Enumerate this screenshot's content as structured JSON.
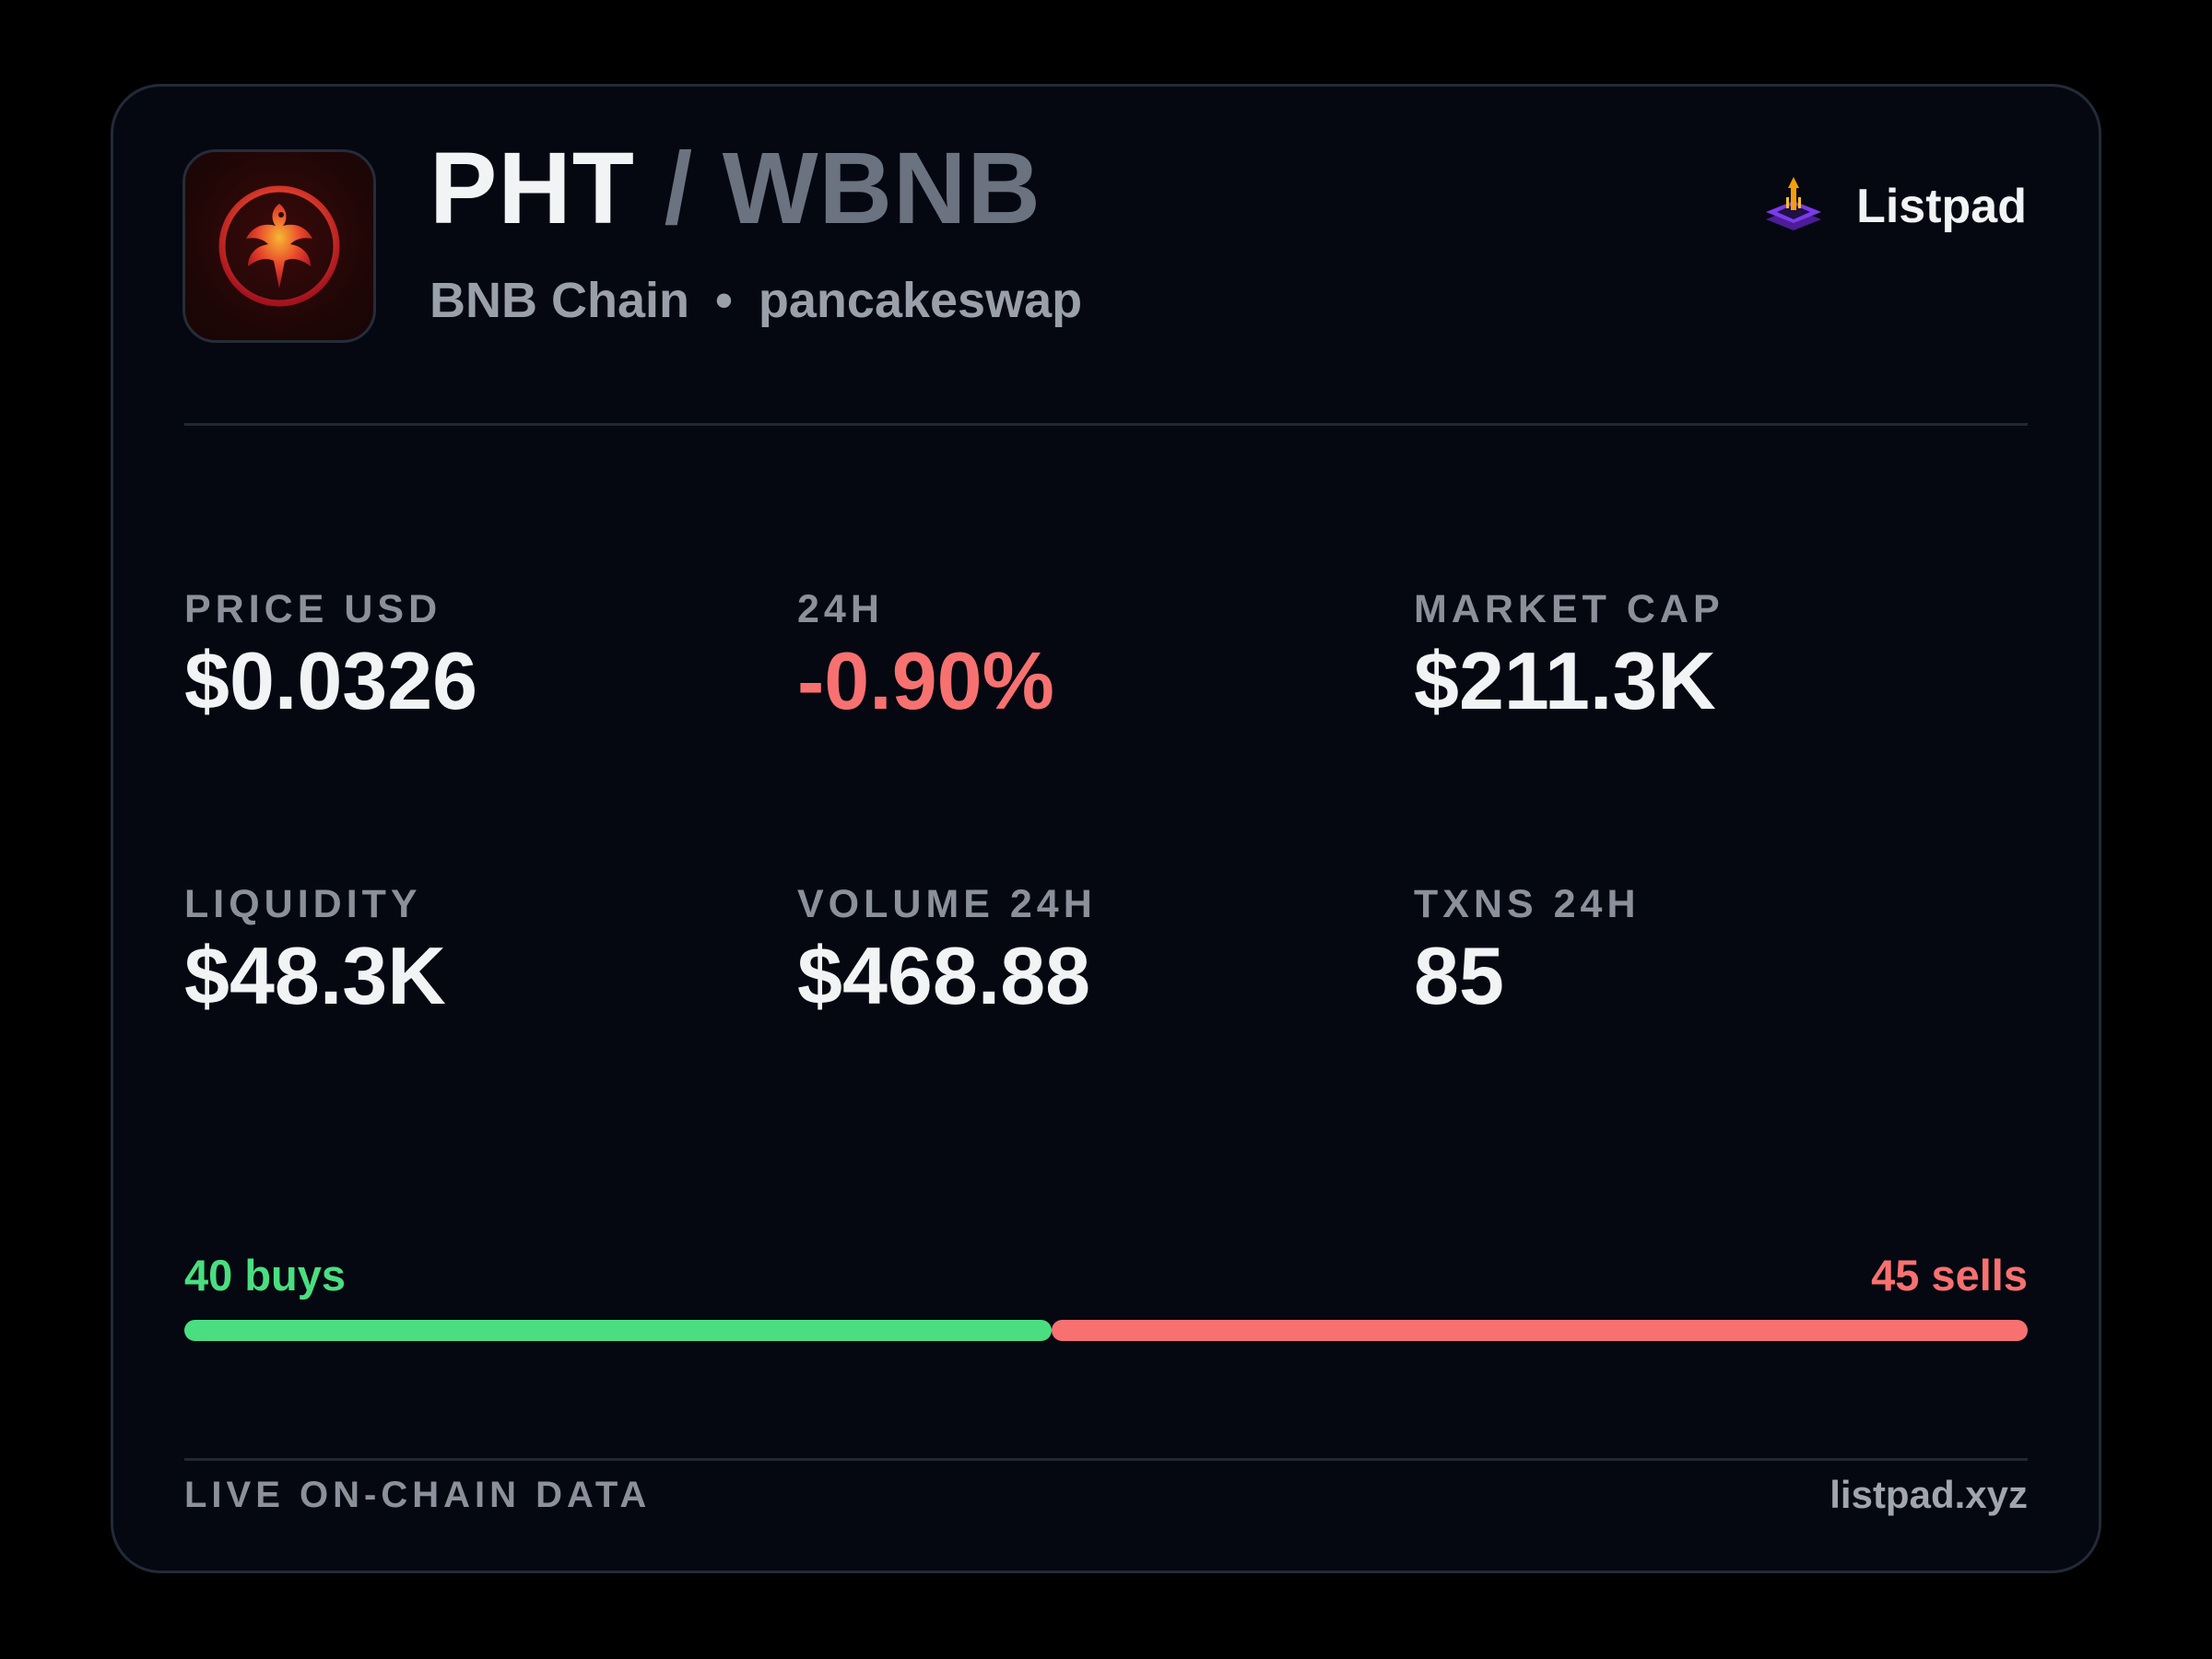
{
  "token": {
    "base": "PHT",
    "separator": "/",
    "quote": "WBNB",
    "chain": "BNB Chain",
    "dot": "•",
    "dex": "pancakeswap",
    "logo_icon": "phoenix-icon"
  },
  "brand": {
    "name": "Listpad",
    "icon": "listpad-rocket-icon"
  },
  "stats": [
    {
      "label": "PRICE USD",
      "value": "$0.0326"
    },
    {
      "label": "24H",
      "value": "-0.90%"
    },
    {
      "label": "MARKET CAP",
      "value": "$211.3K"
    },
    {
      "label": "LIQUIDITY",
      "value": "$48.3K"
    },
    {
      "label": "VOLUME 24H",
      "value": "$468.88"
    },
    {
      "label": "TXNS 24H",
      "value": "85"
    }
  ],
  "trades": {
    "buys": 40,
    "sells": 45,
    "buys_label": "40 buys",
    "sells_label": "45 sells"
  },
  "footer": {
    "left": "LIVE ON-CHAIN DATA",
    "right": "listpad.xyz"
  },
  "colors": {
    "background": "#000000",
    "card": "#050811",
    "positive": "#4ade80",
    "negative": "#f87171",
    "muted": "#8b909a"
  }
}
